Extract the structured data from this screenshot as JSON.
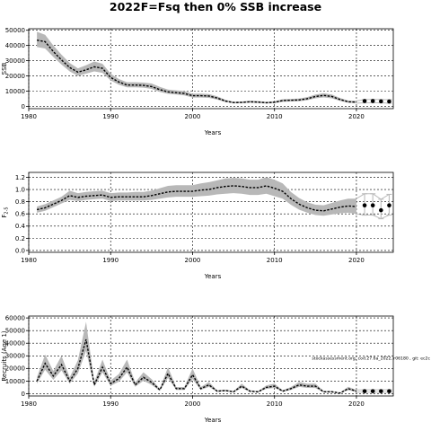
{
  "figure": {
    "title": "2022F=Fsq then 0% SSB increase",
    "note": "stockassessment.org, cod.27.6a_2022, r06180 , git: ec2c"
  },
  "chart_data": [
    {
      "type": "line",
      "ylabel": "SSB",
      "xlabel": "Years",
      "xlim": [
        1980,
        2024.5
      ],
      "ylim": [
        -1500,
        51000
      ],
      "xticks": [
        1980,
        1990,
        2000,
        2010,
        2020
      ],
      "yticks": [
        0,
        10000,
        20000,
        30000,
        40000,
        50000
      ],
      "grid": true,
      "series": [
        {
          "x": [
            1981,
            1982,
            1983,
            1984,
            1985,
            1986,
            1987,
            1988,
            1989,
            1990,
            1991,
            1992,
            1993,
            1994,
            1995,
            1996,
            1997,
            1998,
            1999,
            2000,
            2001,
            2002,
            2003,
            2004,
            2005,
            2006,
            2007,
            2008,
            2009,
            2010,
            2011,
            2012,
            2013,
            2014,
            2015,
            2016,
            2017,
            2018,
            2019,
            2020
          ],
          "values": [
            43500,
            42500,
            36000,
            30500,
            25500,
            22500,
            24000,
            26000,
            25000,
            19000,
            16000,
            14000,
            14000,
            13800,
            13000,
            11000,
            9500,
            9000,
            8500,
            7000,
            7000,
            6800,
            5500,
            3500,
            2500,
            2600,
            3000,
            2800,
            2400,
            2700,
            3800,
            4000,
            4200,
            5000,
            6500,
            7200,
            6500,
            4500,
            3000,
            2800
          ],
          "lower": [
            39000,
            38000,
            32500,
            27500,
            23000,
            20000,
            21500,
            23000,
            22000,
            17000,
            14200,
            12500,
            12500,
            12300,
            11500,
            9500,
            8200,
            7800,
            7200,
            5800,
            5800,
            5600,
            4500,
            2800,
            2000,
            2100,
            2400,
            2200,
            1900,
            2100,
            3000,
            3200,
            3400,
            4000,
            5300,
            5900,
            5300,
            3600,
            2300,
            2100
          ],
          "upper": [
            49000,
            47000,
            40000,
            34000,
            28500,
            25000,
            27000,
            29500,
            28000,
            21500,
            18000,
            15800,
            15800,
            15600,
            15000,
            12800,
            11000,
            10500,
            10000,
            8300,
            8400,
            8100,
            6600,
            4300,
            3100,
            3200,
            3700,
            3500,
            3000,
            3400,
            4700,
            4900,
            5100,
            6100,
            7800,
            8600,
            7800,
            5500,
            3800,
            3600
          ]
        }
      ],
      "forecast": {
        "x": [
          2021,
          2022,
          2023,
          2024
        ],
        "values": [
          3500,
          3500,
          3300,
          3200
        ],
        "lower": [
          2300,
          2400,
          2300,
          2100
        ],
        "upper": [
          4500,
          4600,
          4500,
          4400
        ]
      }
    },
    {
      "type": "line",
      "ylabel": "F",
      "ylabel_sub": "2-5",
      "xlabel": "Years",
      "xlim": [
        1980,
        2024.5
      ],
      "ylim": [
        -0.03,
        1.28
      ],
      "xticks": [
        1980,
        1990,
        2000,
        2010,
        2020
      ],
      "yticks": [
        "0.0",
        "0.2",
        "0.4",
        "0.6",
        "0.8",
        "1.0",
        "1.2"
      ],
      "grid": true,
      "series": [
        {
          "x": [
            1981,
            1982,
            1983,
            1984,
            1985,
            1986,
            1987,
            1988,
            1989,
            1990,
            1991,
            1992,
            1993,
            1994,
            1995,
            1996,
            1997,
            1998,
            1999,
            2000,
            2001,
            2002,
            2003,
            2004,
            2005,
            2006,
            2007,
            2008,
            2009,
            2010,
            2011,
            2012,
            2013,
            2014,
            2015,
            2016,
            2017,
            2018,
            2019,
            2020
          ],
          "values": [
            0.67,
            0.7,
            0.76,
            0.82,
            0.9,
            0.87,
            0.89,
            0.9,
            0.91,
            0.87,
            0.88,
            0.88,
            0.88,
            0.88,
            0.9,
            0.93,
            0.96,
            0.97,
            0.97,
            0.97,
            0.99,
            1.0,
            1.03,
            1.05,
            1.06,
            1.05,
            1.03,
            1.03,
            1.06,
            1.02,
            0.97,
            0.85,
            0.76,
            0.7,
            0.66,
            0.65,
            0.68,
            0.71,
            0.73,
            0.72
          ],
          "lower": [
            0.62,
            0.65,
            0.71,
            0.77,
            0.83,
            0.81,
            0.83,
            0.84,
            0.85,
            0.81,
            0.82,
            0.82,
            0.82,
            0.82,
            0.83,
            0.85,
            0.87,
            0.88,
            0.88,
            0.88,
            0.89,
            0.9,
            0.92,
            0.93,
            0.94,
            0.93,
            0.91,
            0.91,
            0.93,
            0.89,
            0.85,
            0.75,
            0.67,
            0.62,
            0.58,
            0.57,
            0.59,
            0.61,
            0.62,
            0.6
          ],
          "upper": [
            0.72,
            0.76,
            0.82,
            0.88,
            0.98,
            0.94,
            0.96,
            0.97,
            0.98,
            0.94,
            0.95,
            0.95,
            0.96,
            0.96,
            0.98,
            1.02,
            1.06,
            1.07,
            1.07,
            1.07,
            1.1,
            1.12,
            1.15,
            1.18,
            1.19,
            1.18,
            1.16,
            1.16,
            1.2,
            1.16,
            1.1,
            0.96,
            0.86,
            0.79,
            0.75,
            0.74,
            0.78,
            0.82,
            0.85,
            0.85
          ]
        }
      ],
      "forecast": {
        "x": [
          2021,
          2022,
          2023,
          2024
        ],
        "values": [
          0.74,
          0.74,
          0.66,
          0.74
        ],
        "lower": [
          0.58,
          0.58,
          0.52,
          0.58
        ],
        "upper": [
          0.93,
          0.93,
          0.84,
          0.92
        ]
      }
    },
    {
      "type": "line",
      "ylabel": "Recruits (Age 1)",
      "xlabel": "Years",
      "xlim": [
        1980,
        2024.5
      ],
      "ylim": [
        -1800,
        61500
      ],
      "xticks": [
        1980,
        1990,
        2000,
        2010,
        2020
      ],
      "yticks": [
        0,
        10000,
        20000,
        30000,
        40000,
        50000,
        60000
      ],
      "grid": true,
      "series": [
        {
          "x": [
            1981,
            1982,
            1983,
            1984,
            1985,
            1986,
            1987,
            1988,
            1989,
            1990,
            1991,
            1992,
            1993,
            1994,
            1995,
            1996,
            1997,
            1998,
            1999,
            2000,
            2001,
            2002,
            2003,
            2004,
            2005,
            2006,
            2007,
            2008,
            2009,
            2010,
            2011,
            2012,
            2013,
            2014,
            2015,
            2016,
            2017,
            2018,
            2019,
            2020
          ],
          "values": [
            10000,
            24000,
            14000,
            23000,
            10000,
            20000,
            43000,
            7000,
            21000,
            8000,
            12000,
            21000,
            7000,
            13000,
            9000,
            3000,
            16000,
            4000,
            4000,
            15000,
            4000,
            7000,
            2000,
            2500,
            1500,
            6000,
            2000,
            1500,
            5000,
            6000,
            2000,
            4000,
            7000,
            6000,
            6000,
            1500,
            1500,
            500,
            4000,
            2000
          ],
          "lower": [
            8000,
            19000,
            11000,
            18500,
            8000,
            16000,
            34000,
            5500,
            17000,
            6300,
            9500,
            17000,
            5500,
            10300,
            7000,
            2200,
            12500,
            3000,
            3000,
            11500,
            3000,
            5400,
            1500,
            1900,
            1100,
            4500,
            1500,
            1100,
            3800,
            4600,
            1500,
            3000,
            5400,
            4600,
            4500,
            1000,
            1000,
            300,
            2800,
            1300
          ],
          "upper": [
            13000,
            31000,
            18000,
            30000,
            13000,
            26500,
            57000,
            9200,
            27000,
            10500,
            15500,
            27000,
            9000,
            17000,
            11500,
            4000,
            21000,
            5300,
            5300,
            20000,
            5300,
            9200,
            2700,
            3300,
            2000,
            8000,
            2700,
            2000,
            6600,
            8000,
            2700,
            5300,
            9200,
            7900,
            8000,
            2100,
            2100,
            800,
            5500,
            2900
          ]
        }
      ],
      "forecast": {
        "x": [
          2021,
          2022,
          2023,
          2024
        ],
        "values": [
          2000,
          2000,
          2000,
          2000
        ],
        "lower": [
          1200,
          1200,
          1200,
          1200
        ],
        "upper": [
          3100,
          3100,
          3100,
          3100
        ]
      }
    }
  ]
}
